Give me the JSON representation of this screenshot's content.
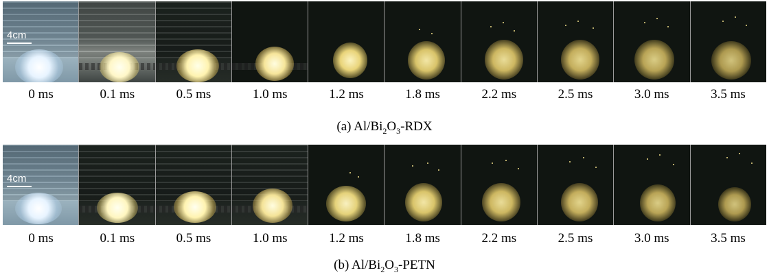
{
  "scale_label": "4cm",
  "panel_a": {
    "caption_pre": "(a) Al/Bi",
    "caption_sub1": "2",
    "caption_mid": "O",
    "caption_sub2": "3",
    "caption_post": "-RDX",
    "times": [
      "0 ms",
      "0.1 ms",
      "0.5 ms",
      "1.0 ms",
      "1.2 ms",
      "1.8 ms",
      "2.2 ms",
      "2.5 ms",
      "3.0 ms",
      "3.5 ms"
    ]
  },
  "panel_b": {
    "caption_pre": "(b) Al/Bi",
    "caption_sub1": "2",
    "caption_mid": "O",
    "caption_sub2": "3",
    "caption_post": "-PETN",
    "times": [
      "0 ms",
      "0.1 ms",
      "0.5 ms",
      "1.0 ms",
      "1.2 ms",
      "1.8 ms",
      "2.2 ms",
      "2.5 ms",
      "3.0 ms",
      "3.5 ms"
    ]
  }
}
